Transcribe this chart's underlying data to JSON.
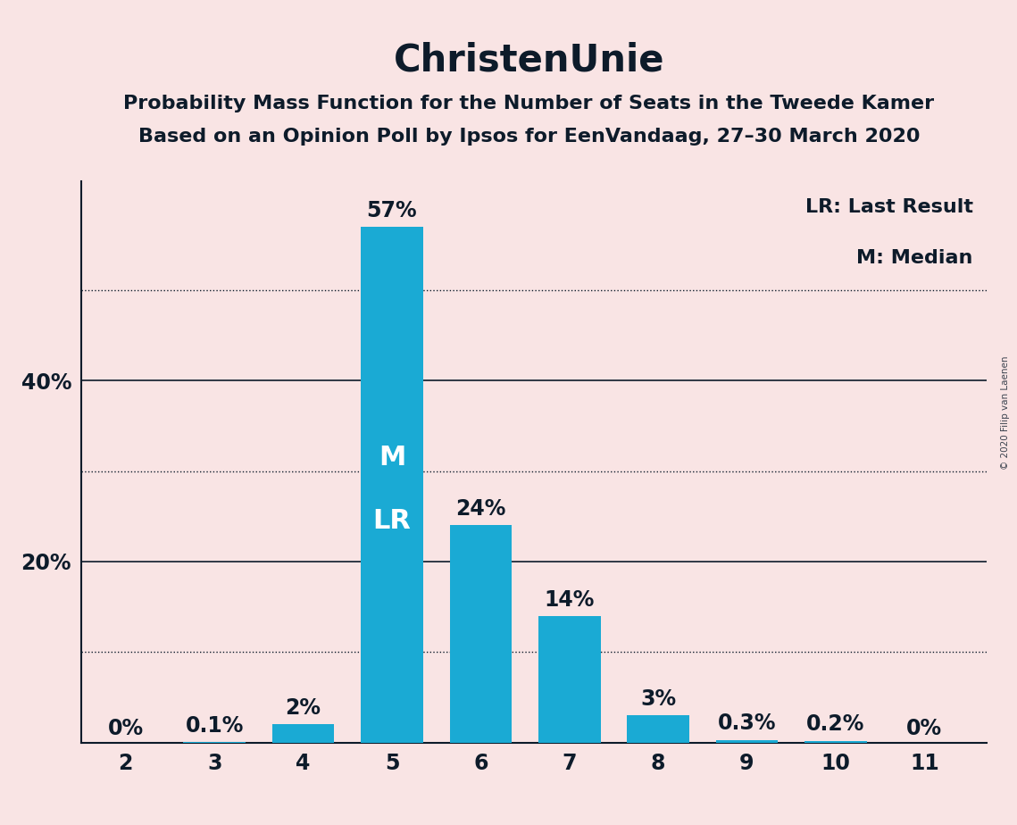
{
  "title": "ChristenUnie",
  "subtitle1": "Probability Mass Function for the Number of Seats in the Tweede Kamer",
  "subtitle2": "Based on an Opinion Poll by Ipsos for EenVandaag, 27–30 March 2020",
  "watermark": "© 2020 Filip van Laenen",
  "categories": [
    2,
    3,
    4,
    5,
    6,
    7,
    8,
    9,
    10,
    11
  ],
  "values": [
    0.0,
    0.1,
    2.0,
    57.0,
    24.0,
    14.0,
    3.0,
    0.3,
    0.2,
    0.0
  ],
  "labels": [
    "0%",
    "0.1%",
    "2%",
    "57%",
    "24%",
    "14%",
    "3%",
    "0.3%",
    "0.2%",
    "0%"
  ],
  "bar_color": "#1aaad4",
  "background_color": "#f9e4e4",
  "text_color": "#0d1b2a",
  "median_seat": 5,
  "last_result_seat": 5,
  "median_label": "M",
  "lr_label": "LR",
  "legend_lr": "LR: Last Result",
  "legend_m": "M: Median",
  "solid_gridlines": [
    20,
    40
  ],
  "dotted_gridlines": [
    10,
    30,
    50
  ],
  "ylim": [
    0,
    62
  ],
  "title_fontsize": 30,
  "subtitle_fontsize": 16,
  "bar_label_fontsize": 17,
  "axis_tick_fontsize": 17,
  "legend_fontsize": 16,
  "inner_label_fontsize": 22,
  "inner_label_color": "#ffffff"
}
